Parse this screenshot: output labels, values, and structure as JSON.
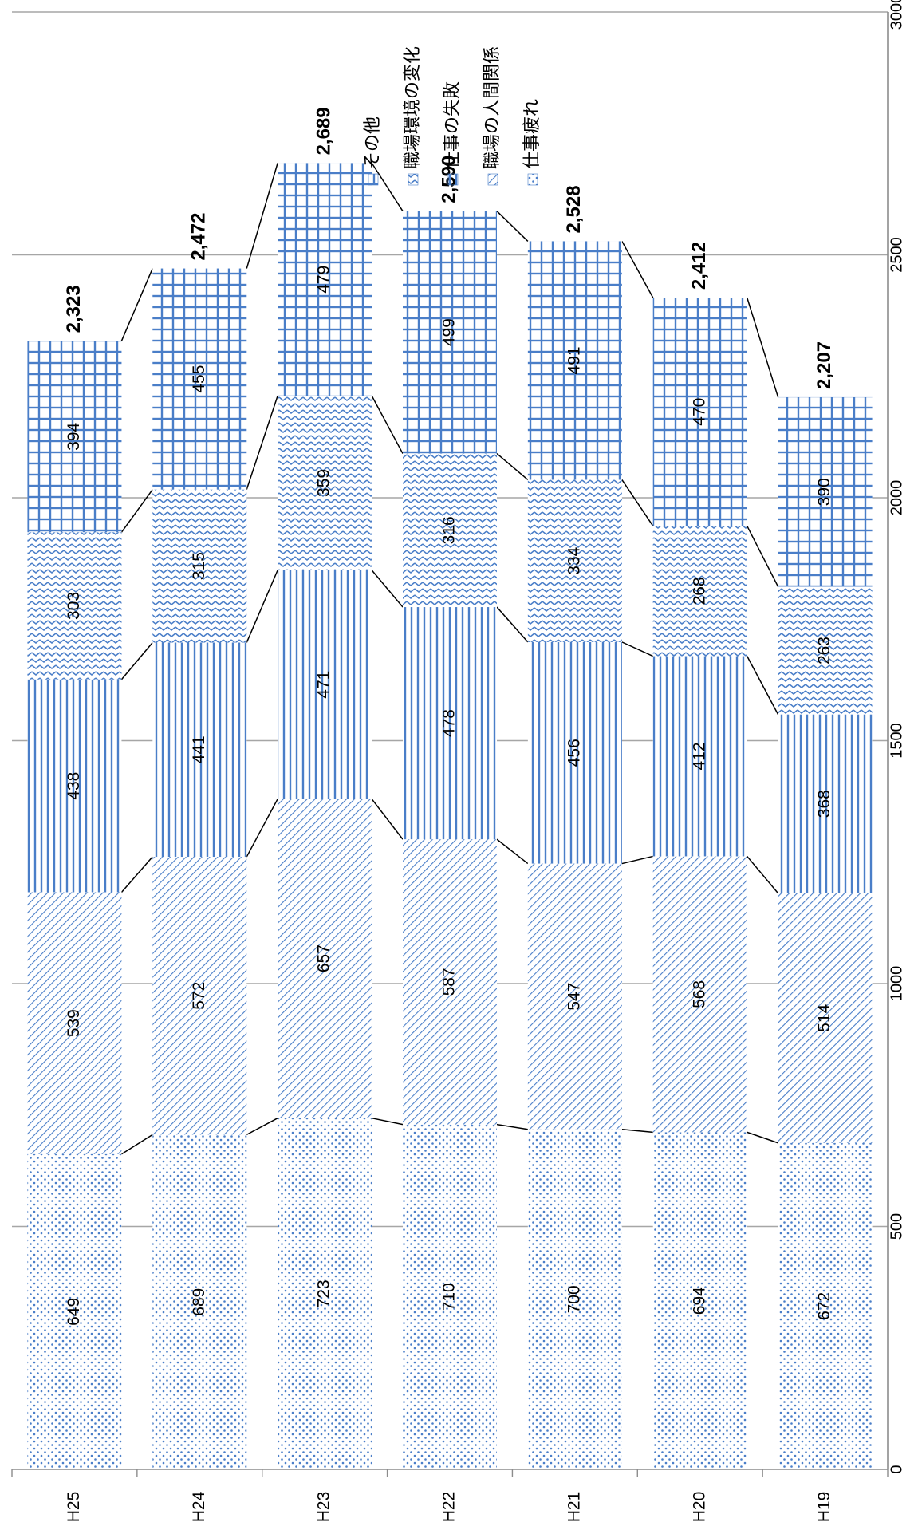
{
  "chart_data": {
    "type": "bar",
    "stacked": true,
    "orientation": "rotated",
    "categories": [
      "H19",
      "H20",
      "H21",
      "H22",
      "H23",
      "H24",
      "H25"
    ],
    "series": [
      {
        "name": "仕事疲れ",
        "values": [
          672,
          694,
          700,
          710,
          723,
          689,
          649
        ],
        "color": "#4a7ec8",
        "pattern": "dots"
      },
      {
        "name": "職場の人間関係",
        "values": [
          514,
          568,
          547,
          587,
          657,
          572,
          539
        ],
        "color": "#4a7ec8",
        "pattern": "diag"
      },
      {
        "name": "仕事の失敗",
        "values": [
          368,
          412,
          456,
          478,
          471,
          441,
          438
        ],
        "color": "#4a7ec8",
        "pattern": "lines"
      },
      {
        "name": "職場環境の変化",
        "values": [
          263,
          268,
          334,
          316,
          359,
          315,
          303
        ],
        "color": "#4a7ec8",
        "pattern": "wave"
      },
      {
        "name": "その他",
        "values": [
          390,
          470,
          491,
          499,
          479,
          455,
          394
        ],
        "color": "#4a7ec8",
        "pattern": "grid"
      }
    ],
    "totals": [
      "2,207",
      "2,412",
      "2,528",
      "2,590",
      "2,689",
      "2,472",
      "2,323"
    ],
    "value_axis": {
      "min": 0,
      "max": 3000,
      "ticks": [
        0,
        500,
        1000,
        1500,
        2000,
        2500,
        3000
      ]
    },
    "grid": true,
    "legend_position": "top-right",
    "series_lines": true,
    "xlabel": "",
    "ylabel": ""
  }
}
